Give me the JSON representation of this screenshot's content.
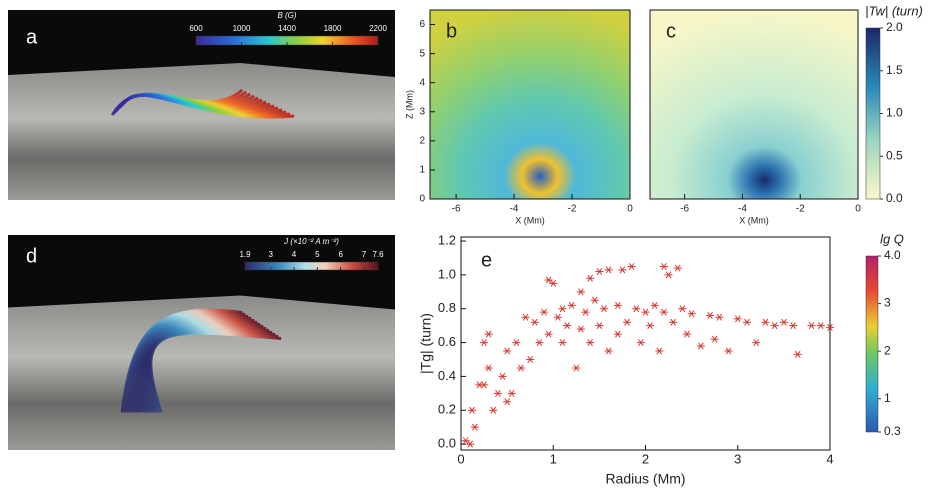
{
  "chart_data": [
    {
      "type": "render3d",
      "label": "a",
      "colorbar_title": "B (G)",
      "clim": [
        600,
        2200
      ],
      "cticks": [
        600,
        1000,
        1400,
        1800,
        2200
      ]
    },
    {
      "type": "heatmap",
      "label": "b",
      "xlabel": "X (Mm)",
      "ylabel": "Z (Mm)",
      "xlim": [
        -6.9,
        0
      ],
      "ylim": [
        0,
        6.5
      ],
      "xticks": [
        -6,
        -4,
        -2,
        0
      ],
      "yticks": [
        0,
        1,
        2,
        3,
        4,
        5,
        6
      ]
    },
    {
      "type": "heatmap",
      "label": "c",
      "xlabel": "X (Mm)",
      "xlim": [
        -7.2,
        0
      ],
      "xticks": [
        -6,
        -4,
        -2,
        0
      ],
      "colorbar_title": "|Tw| (turn)",
      "clim": [
        0,
        2
      ],
      "cticks": [
        {
          "value": 0,
          "label": "0.0"
        },
        {
          "value": 0.5,
          "label": "0.5"
        },
        {
          "value": 1,
          "label": "1.0"
        },
        {
          "value": 1.5,
          "label": "1.5"
        },
        {
          "value": 2,
          "label": "2.0"
        }
      ]
    },
    {
      "type": "render3d",
      "label": "d",
      "colorbar_title": "J (×10⁻² A m⁻²)",
      "clim": [
        1.9,
        7.6
      ],
      "cticks": [
        1.9,
        3,
        4,
        5,
        6,
        7,
        7.6
      ]
    },
    {
      "type": "scatter",
      "label": "e",
      "xlabel": "Radius (Mm)",
      "ylabel": "|Tg| (turn)",
      "color": "#d63a32",
      "x": [
        0.05,
        0.1,
        0.15,
        0.12,
        0.2,
        0.25,
        0.3,
        0.25,
        0.3,
        0.35,
        0.4,
        0.45,
        0.5,
        0.5,
        0.55,
        0.6,
        0.65,
        0.7,
        0.75,
        0.8,
        0.85,
        0.9,
        0.95,
        0.95,
        1.0,
        1.05,
        1.1,
        1.1,
        1.15,
        1.2,
        1.25,
        1.3,
        1.3,
        1.35,
        1.4,
        1.4,
        1.45,
        1.5,
        1.5,
        1.55,
        1.6,
        1.6,
        1.7,
        1.7,
        1.75,
        1.8,
        1.85,
        1.9,
        1.95,
        2.0,
        2.05,
        2.1,
        2.15,
        2.2,
        2.2,
        2.25,
        2.3,
        2.35,
        2.4,
        2.45,
        2.5,
        2.6,
        2.7,
        2.75,
        2.8,
        2.9,
        3.0,
        3.1,
        3.2,
        3.3,
        3.4,
        3.5,
        3.6,
        3.65,
        3.8,
        3.9,
        4.0
      ],
      "values": [
        0.02,
        0.0,
        0.1,
        0.2,
        0.35,
        0.35,
        0.45,
        0.6,
        0.65,
        0.2,
        0.3,
        0.4,
        0.55,
        0.25,
        0.3,
        0.6,
        0.45,
        0.75,
        0.5,
        0.72,
        0.6,
        0.78,
        0.65,
        0.97,
        0.95,
        0.75,
        0.8,
        0.6,
        0.7,
        0.82,
        0.45,
        0.68,
        0.9,
        0.78,
        0.6,
        0.98,
        0.85,
        1.02,
        0.7,
        0.8,
        0.55,
        1.03,
        0.82,
        0.65,
        1.03,
        0.72,
        1.05,
        0.8,
        0.6,
        0.78,
        0.7,
        0.82,
        0.55,
        0.78,
        1.05,
        1.0,
        0.72,
        1.04,
        0.8,
        0.65,
        0.77,
        0.58,
        0.76,
        0.62,
        0.75,
        0.55,
        0.74,
        0.72,
        0.6,
        0.72,
        0.7,
        0.72,
        0.7,
        0.53,
        0.7,
        0.7,
        0.69
      ],
      "xlim": [
        0,
        4
      ],
      "ylim": [
        -0.035,
        1.224
      ],
      "xticks": [
        0,
        1,
        2,
        3,
        4
      ],
      "yticks": [
        {
          "value": 0,
          "label": "0.0"
        },
        {
          "value": 0.2,
          "label": "0.2"
        },
        {
          "value": 0.4,
          "label": "0.4"
        },
        {
          "value": 0.6,
          "label": "0.6"
        },
        {
          "value": 0.8,
          "label": "0.8"
        },
        {
          "value": 1,
          "label": "1.0"
        },
        {
          "value": 1.2,
          "label": "1.2"
        }
      ],
      "colorbar_title": "lg Q",
      "clim": [
        0.3,
        4.0
      ],
      "cticks": [
        {
          "value": 0.3,
          "label": "0.3"
        },
        1,
        2,
        3,
        {
          "value": 4,
          "label": "4.0"
        }
      ]
    }
  ]
}
